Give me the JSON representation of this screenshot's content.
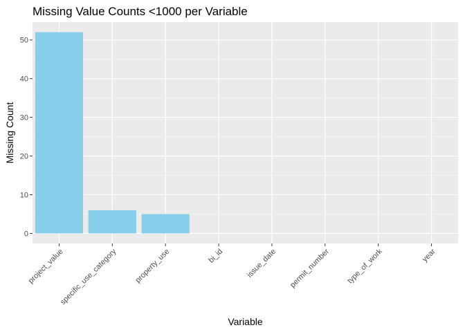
{
  "chart_data": {
    "type": "bar",
    "title": "Missing Value Counts <1000 per Variable",
    "xlabel": "Variable",
    "ylabel": "Missing Count",
    "categories": [
      "project_value",
      "specific_use_category",
      "property_use",
      "bi_id",
      "issue_date",
      "permit_number",
      "type_of_work",
      "year"
    ],
    "values": [
      52,
      6,
      5,
      0,
      0,
      0,
      0,
      0
    ],
    "ylim": [
      -2.6,
      54.6
    ],
    "yticks": [
      0,
      10,
      20,
      30,
      40,
      50
    ],
    "grid": true,
    "legend": "none",
    "colors": {
      "bar": "#87CEEB",
      "panel": "#EBEBEB",
      "grid_major": "#FFFFFF",
      "grid_minor": "#F5F5F5",
      "tick": "#333333",
      "tick_label": "#4D4D4D",
      "text": "#000000"
    }
  }
}
